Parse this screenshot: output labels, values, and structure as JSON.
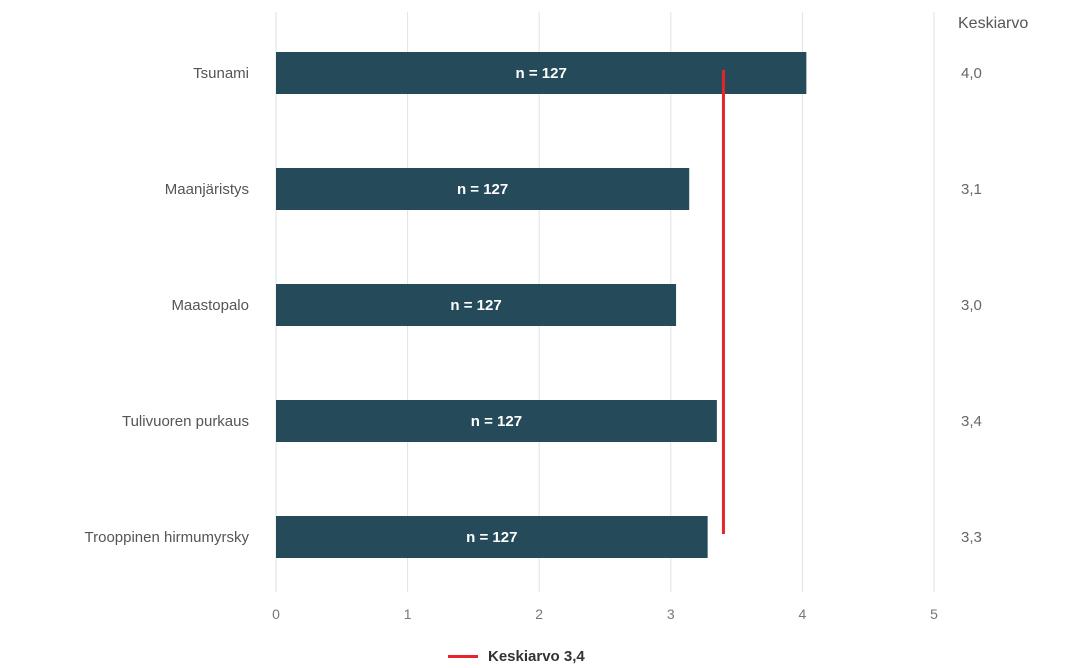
{
  "chart_data": {
    "type": "bar",
    "orientation": "horizontal",
    "categories": [
      "Tsunami",
      "Maanjäristys",
      "Maastopalo",
      "Tulivuoren purkaus",
      "Trooppinen hirmumyrsky"
    ],
    "values": [
      4.03,
      3.14,
      3.04,
      3.35,
      3.28
    ],
    "bar_labels": [
      "n = 127",
      "n = 127",
      "n = 127",
      "n = 127",
      "n = 127"
    ],
    "mean_labels": [
      "4,0",
      "3,1",
      "3,0",
      "3,4",
      "3,3"
    ],
    "mean_column_header": "Keskiarvo",
    "reference_line": {
      "value": 3.4,
      "label": "Keskiarvo 3,4",
      "color": "#e8232a"
    },
    "xlim": [
      0,
      5
    ],
    "xticks": [
      "0",
      "1",
      "2",
      "3",
      "4",
      "5"
    ],
    "grid": true,
    "legend_position": "bottom-center",
    "bar_color": "#254b5a"
  }
}
